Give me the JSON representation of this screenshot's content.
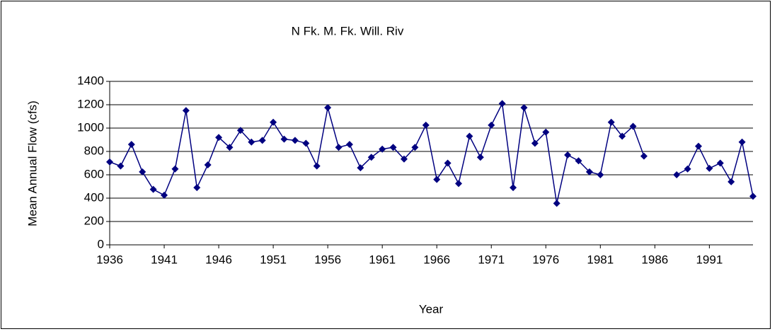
{
  "chart_data": {
    "type": "line",
    "title": "N Fk. M. Fk. Will. Riv",
    "x_label": "Year",
    "y_label": "Mean Annual Flow (cfs)",
    "categories": [
      "1936",
      null,
      null,
      null,
      null,
      "1941",
      null,
      null,
      null,
      null,
      "1946",
      null,
      null,
      null,
      null,
      "1951",
      null,
      null,
      null,
      null,
      "1956",
      null,
      null,
      null,
      null,
      "1961",
      null,
      null,
      null,
      null,
      "1966",
      null,
      null,
      null,
      null,
      "1971",
      null,
      null,
      null,
      null,
      "1976",
      null,
      null,
      null,
      null,
      "1981",
      null,
      null,
      null,
      null,
      "1986",
      null,
      null,
      null,
      null,
      "1991",
      null,
      null,
      null,
      null
    ],
    "series": [
      {
        "name": "Mean Annual Flow",
        "color": "#000080",
        "values": [
          710,
          675,
          860,
          625,
          475,
          425,
          650,
          1150,
          490,
          685,
          920,
          835,
          980,
          880,
          895,
          1050,
          905,
          895,
          870,
          675,
          1175,
          835,
          860,
          660,
          750,
          820,
          835,
          735,
          835,
          1025,
          560,
          700,
          525,
          930,
          750,
          1025,
          1210,
          490,
          1175,
          870,
          965,
          355,
          770,
          720,
          625,
          600,
          1050,
          930,
          1015,
          760,
          null,
          null,
          600,
          650,
          845,
          655,
          700,
          540,
          880,
          416
        ]
      }
    ],
    "ylim": [
      0,
      1400
    ],
    "yticks": [
      0,
      200,
      400,
      600,
      800,
      1000,
      1200,
      1400
    ],
    "grid": true
  }
}
